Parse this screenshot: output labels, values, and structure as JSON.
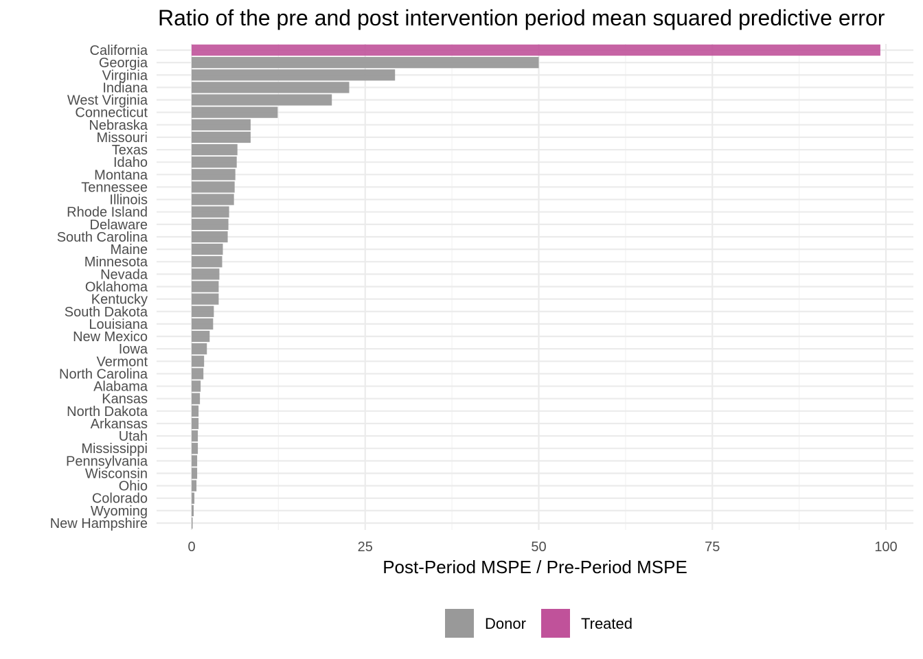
{
  "chart_data": {
    "type": "bar",
    "orientation": "horizontal",
    "title": "Ratio of the pre and post intervention period mean squared predictive error",
    "xlabel": "Post-Period MSPE / Pre-Period MSPE",
    "ylabel": "",
    "xlim": [
      -3,
      103
    ],
    "xticks": [
      0,
      25,
      50,
      75,
      100
    ],
    "xtick_labels": [
      "0",
      "25",
      "50",
      "75",
      "100"
    ],
    "grid": true,
    "legend_position": "bottom",
    "colors": {
      "Donor": "#999999",
      "Treated": "#c0529a"
    },
    "legend": [
      {
        "label": "Donor",
        "color": "#999999"
      },
      {
        "label": "Treated",
        "color": "#c0529a"
      }
    ],
    "categories": [
      "California",
      "Georgia",
      "Virginia",
      "Indiana",
      "West Virginia",
      "Connecticut",
      "Nebraska",
      "Missouri",
      "Texas",
      "Idaho",
      "Montana",
      "Tennessee",
      "Illinois",
      "Rhode Island",
      "Delaware",
      "South Carolina",
      "Maine",
      "Minnesota",
      "Nevada",
      "Oklahoma",
      "Kentucky",
      "South Dakota",
      "Louisiana",
      "New Mexico",
      "Iowa",
      "Vermont",
      "North Carolina",
      "Alabama",
      "Kansas",
      "North Dakota",
      "Arkansas",
      "Utah",
      "Mississippi",
      "Pennsylvania",
      "Wisconsin",
      "Ohio",
      "Colorado",
      "Wyoming",
      "New Hampshire"
    ],
    "values": [
      99.2,
      50.0,
      29.3,
      22.7,
      20.2,
      12.4,
      8.5,
      8.5,
      6.6,
      6.5,
      6.3,
      6.2,
      6.1,
      5.4,
      5.3,
      5.2,
      4.5,
      4.4,
      4.0,
      3.9,
      3.9,
      3.2,
      3.1,
      2.6,
      2.2,
      1.8,
      1.7,
      1.3,
      1.2,
      1.0,
      1.0,
      0.9,
      0.9,
      0.8,
      0.8,
      0.7,
      0.4,
      0.3,
      0.1
    ],
    "groups": [
      "Treated",
      "Donor",
      "Donor",
      "Donor",
      "Donor",
      "Donor",
      "Donor",
      "Donor",
      "Donor",
      "Donor",
      "Donor",
      "Donor",
      "Donor",
      "Donor",
      "Donor",
      "Donor",
      "Donor",
      "Donor",
      "Donor",
      "Donor",
      "Donor",
      "Donor",
      "Donor",
      "Donor",
      "Donor",
      "Donor",
      "Donor",
      "Donor",
      "Donor",
      "Donor",
      "Donor",
      "Donor",
      "Donor",
      "Donor",
      "Donor",
      "Donor",
      "Donor",
      "Donor",
      "Donor"
    ]
  }
}
